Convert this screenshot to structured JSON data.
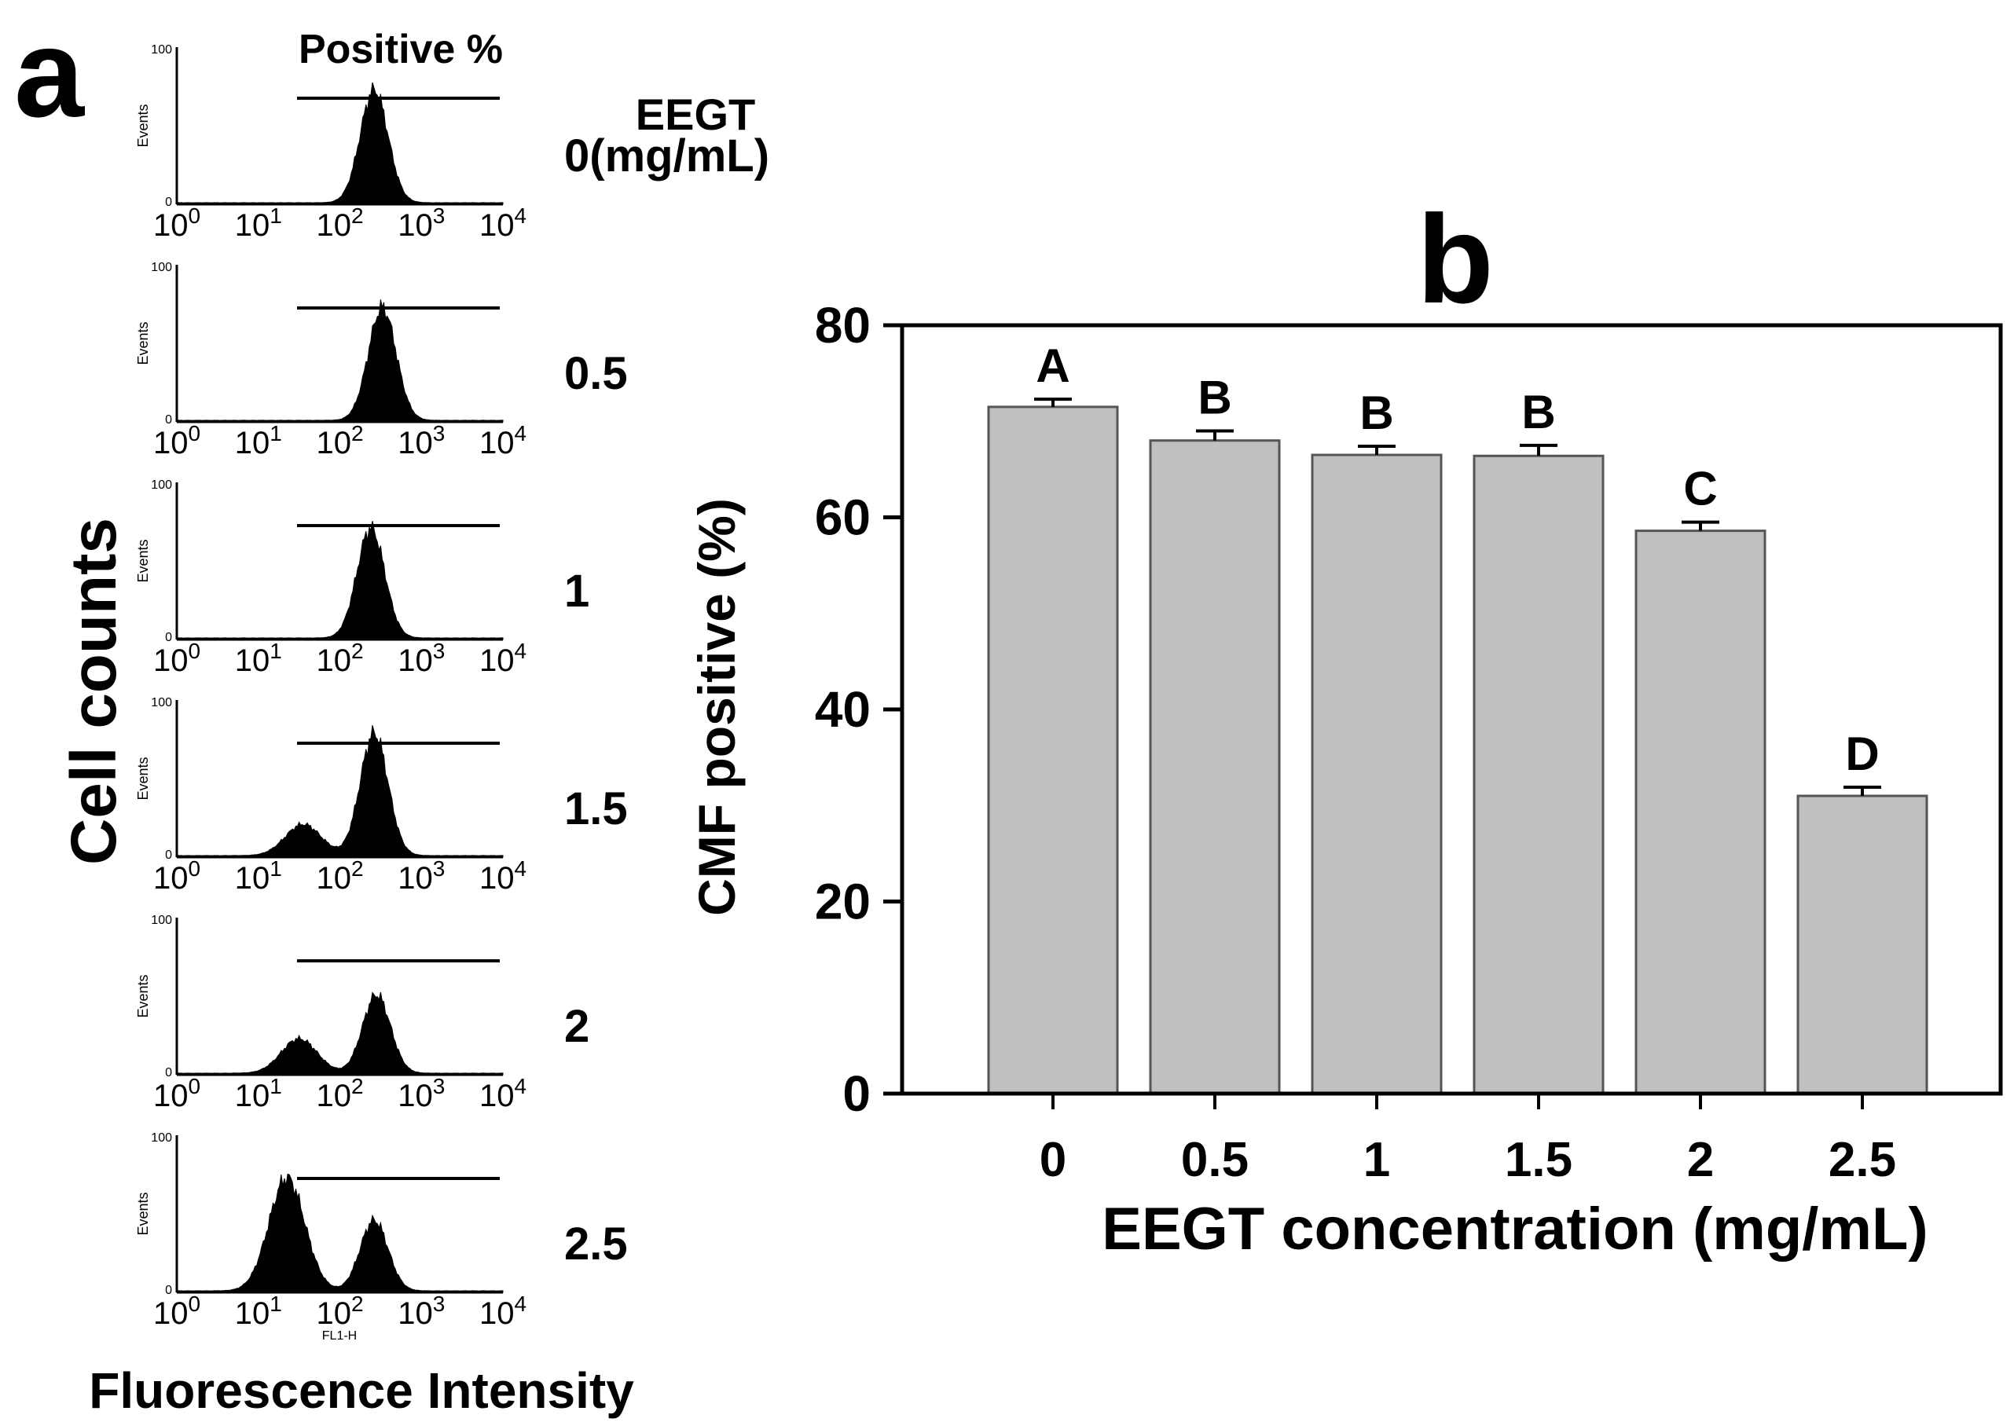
{
  "panel_a": {
    "letter": "a",
    "positive_label": "Positive %",
    "group_label_line1": "EEGT",
    "group_label_line2_prefix": "0",
    "group_label_unit": "(mg/mL)",
    "y_axis_title": "Cell counts",
    "x_axis_title": "Fluorescence Intensity",
    "events_label": "Events",
    "y_tick_top": "100",
    "y_tick_bottom": "0",
    "channel_label": "FL1-H",
    "x_tick_base": "10",
    "x_tick_exponents": [
      "0",
      "1",
      "2",
      "3",
      "4"
    ],
    "histograms": [
      {
        "concentration": "0",
        "main_peak_decade": 2.42,
        "low_peak_decade": null,
        "low_peak_height": 0,
        "main_peak_height": 0.72
      },
      {
        "concentration": "0.5",
        "main_peak_decade": 2.52,
        "low_peak_decade": null,
        "low_peak_height": 0,
        "main_peak_height": 0.72
      },
      {
        "concentration": "1",
        "main_peak_decade": 2.38,
        "low_peak_decade": null,
        "low_peak_height": 0,
        "main_peak_height": 0.7
      },
      {
        "concentration": "1.5",
        "main_peak_decade": 2.42,
        "low_peak_decade": 1.55,
        "low_peak_height": 0.2,
        "main_peak_height": 0.78
      },
      {
        "concentration": "2",
        "main_peak_decade": 2.45,
        "low_peak_decade": 1.5,
        "low_peak_height": 0.22,
        "main_peak_height": 0.5
      },
      {
        "concentration": "2.5",
        "main_peak_decade": 2.42,
        "low_peak_decade": 1.35,
        "low_peak_height": 0.72,
        "main_peak_height": 0.45
      }
    ]
  },
  "chart_data": {
    "type": "bar",
    "panel_letter": "b",
    "title": "",
    "categories": [
      "0",
      "0.5",
      "1",
      "1.5",
      "2",
      "2.5"
    ],
    "values": [
      71.5,
      68.0,
      66.5,
      66.4,
      58.6,
      31.0
    ],
    "errors": [
      0.8,
      1.0,
      0.9,
      1.1,
      0.9,
      0.9
    ],
    "significance_letters": [
      "A",
      "B",
      "B",
      "B",
      "C",
      "D"
    ],
    "xlabel": "EEGT concentration (mg/mL)",
    "ylabel": "CMF positive (%)",
    "ylim": [
      0,
      80
    ],
    "yticks": [
      "0",
      "20",
      "40",
      "60",
      "80"
    ],
    "bar_color": "#c0c0c0",
    "grid": false
  }
}
